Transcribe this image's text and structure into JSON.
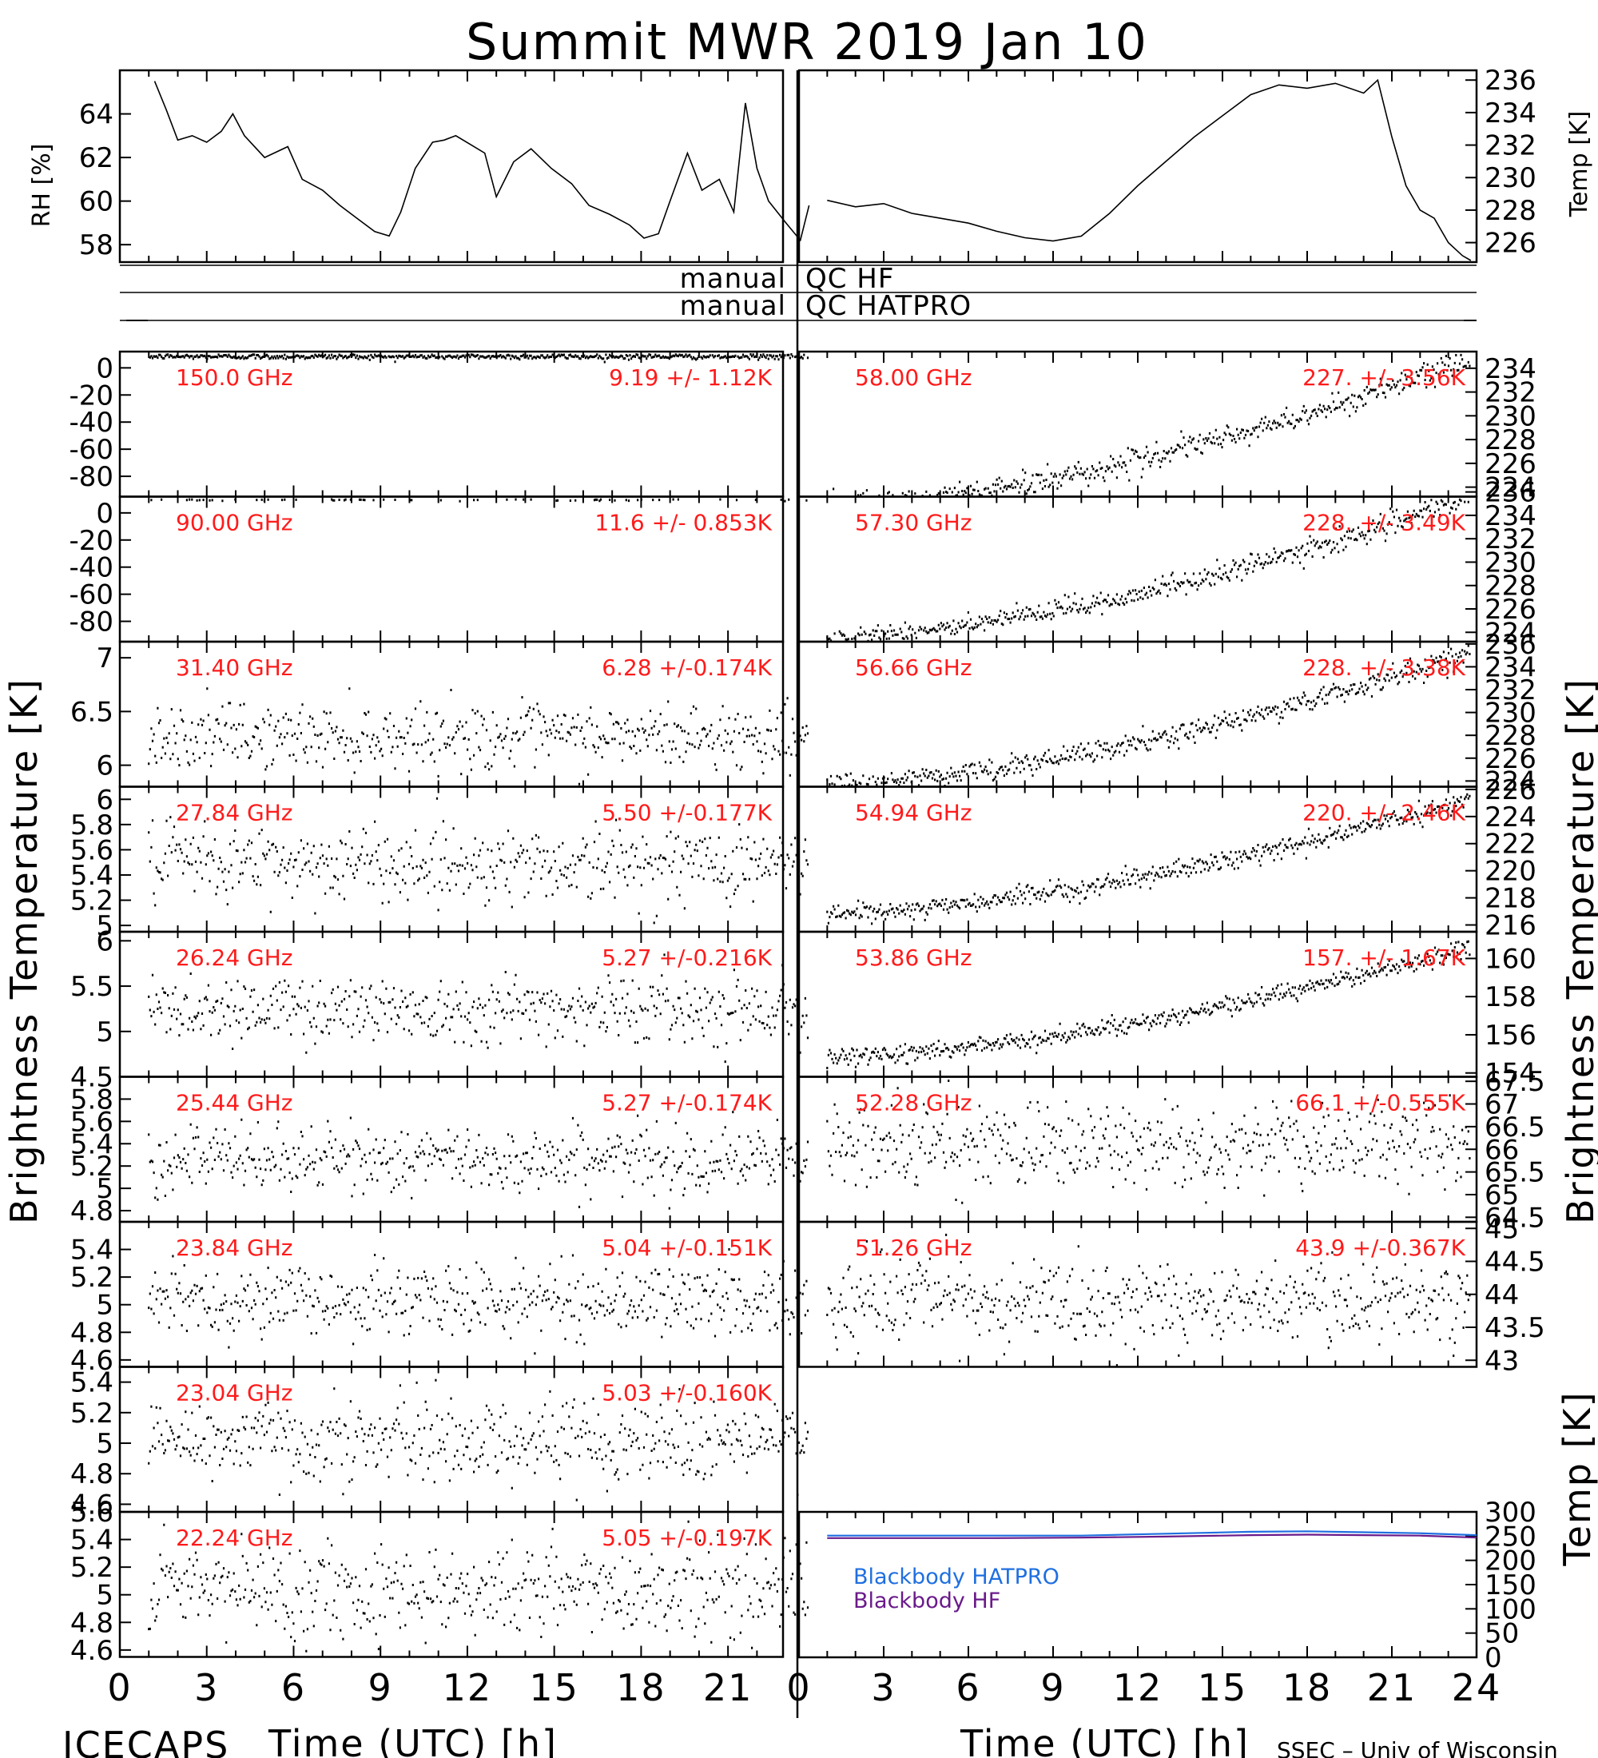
{
  "title": "Summit MWR 2019 Jan 10",
  "footer": {
    "left": "ICECAPS",
    "right": "SSEC – Univ of Wisconsin",
    "xlabel_left": "Time (UTC) [h]",
    "xlabel_right": "Time (UTC) [h]"
  },
  "y_labels": {
    "rh": "RH [%]",
    "temp_top": "Temp [K]",
    "bt_left": "Brightness Temperature [K]",
    "bt_right": "Brightness Temperature [K]",
    "bb_temp": "Temp [K]"
  },
  "qc": {
    "hf": "QC HF",
    "hatpro": "QC HATPRO",
    "manual_hf": "manual",
    "manual_hatpro": "manual"
  },
  "colors": {
    "channel_label": "#ff1a1a",
    "blackbody_hatpro": "#1f6fe0",
    "blackbody_hf": "#6a1a8a",
    "trace": "#000000"
  },
  "chart_data": [
    {
      "type": "line",
      "panel": "rh",
      "ylabel": "RH [%]",
      "ylim": [
        57.2,
        66
      ],
      "xlim": [
        0,
        24
      ],
      "yticks": [
        58,
        60,
        62,
        64
      ],
      "x": [
        1.2,
        1.6,
        2.0,
        2.5,
        3.0,
        3.5,
        3.9,
        4.3,
        5.0,
        5.8,
        6.3,
        7.0,
        7.6,
        8.2,
        8.8,
        9.3,
        9.7,
        10.2,
        10.8,
        11.2,
        11.6,
        12.1,
        12.6,
        13.0,
        13.6,
        14.2,
        14.9,
        15.6,
        16.2,
        16.9,
        17.6,
        18.1,
        18.6,
        19.0,
        19.6,
        20.1,
        20.7,
        21.2,
        21.6,
        22.0,
        22.4,
        23.0,
        23.5,
        23.8
      ],
      "y": [
        65.5,
        64.2,
        62.8,
        63.0,
        62.7,
        63.2,
        64.0,
        63.0,
        62.0,
        62.5,
        61.0,
        60.5,
        59.8,
        59.2,
        58.6,
        58.4,
        59.5,
        61.5,
        62.7,
        62.8,
        63.0,
        62.6,
        62.2,
        60.2,
        61.8,
        62.4,
        61.5,
        60.8,
        59.8,
        59.4,
        58.9,
        58.3,
        58.5,
        60.0,
        62.2,
        60.5,
        61.0,
        59.5,
        64.5,
        61.5,
        60.0,
        59.0,
        58.2,
        59.8
      ]
    },
    {
      "type": "line",
      "panel": "air_temp",
      "ylabel": "Temp [K]",
      "ylim": [
        224.8,
        236.6
      ],
      "xlim": [
        0,
        24
      ],
      "yticks": [
        226,
        228,
        230,
        232,
        234,
        236
      ],
      "x": [
        1.0,
        2.0,
        3.0,
        4.0,
        5.0,
        6.0,
        7.0,
        8.0,
        9.0,
        10.0,
        11.0,
        12.0,
        13.0,
        14.0,
        15.0,
        16.0,
        17.0,
        18.0,
        19.0,
        20.0,
        20.5,
        21.0,
        21.5,
        22.0,
        22.5,
        23.0,
        23.5,
        23.8
      ],
      "y": [
        228.6,
        228.2,
        228.4,
        227.8,
        227.5,
        227.2,
        226.7,
        226.3,
        226.1,
        226.4,
        227.8,
        229.5,
        231.0,
        232.5,
        233.8,
        235.1,
        235.7,
        235.5,
        235.8,
        235.2,
        236.0,
        232.5,
        229.5,
        228.0,
        227.5,
        226.0,
        225.2,
        224.9
      ]
    },
    {
      "type": "scatter",
      "panel": "hf",
      "freq": "150.0 GHz",
      "stats": "9.19 +/-  1.12K",
      "ylim": [
        -95,
        12
      ],
      "yticks": [
        0,
        -20,
        -40,
        -60,
        -80
      ],
      "mean": 9.19,
      "std": 1.12,
      "trend": 0
    },
    {
      "type": "scatter",
      "panel": "hf",
      "freq": "90.00 GHz",
      "stats": "11.6 +/- 0.853K",
      "ylim": [
        -95,
        12
      ],
      "yticks": [
        0,
        -20,
        -40,
        -60,
        -80
      ],
      "mean": 11.6,
      "std": 0.853,
      "trend": 0
    },
    {
      "type": "scatter",
      "panel": "hf",
      "freq": "31.40 GHz",
      "stats": "6.28 +/-0.174K",
      "ylim": [
        5.8,
        7.15
      ],
      "yticks": [
        6.0,
        6.5,
        7.0
      ],
      "mean": 6.28,
      "std": 0.174,
      "trend": 0
    },
    {
      "type": "scatter",
      "panel": "hf",
      "freq": "27.84 GHz",
      "stats": "5.50 +/-0.177K",
      "ylim": [
        4.95,
        6.1
      ],
      "yticks": [
        5.0,
        5.2,
        5.4,
        5.6,
        5.8,
        6.0
      ],
      "mean": 5.5,
      "std": 0.177,
      "trend": 0
    },
    {
      "type": "scatter",
      "panel": "hf",
      "freq": "26.24 GHz",
      "stats": "5.27 +/-0.216K",
      "ylim": [
        4.5,
        6.1
      ],
      "yticks": [
        4.5,
        5.0,
        5.5,
        6.0
      ],
      "mean": 5.27,
      "std": 0.216,
      "trend": 0
    },
    {
      "type": "scatter",
      "panel": "hf",
      "freq": "25.44 GHz",
      "stats": "5.27 +/-0.174K",
      "ylim": [
        4.7,
        6.0
      ],
      "yticks": [
        4.8,
        5.0,
        5.2,
        5.4,
        5.6,
        5.8
      ],
      "mean": 5.27,
      "std": 0.174,
      "trend": 0
    },
    {
      "type": "scatter",
      "panel": "hf",
      "freq": "23.84 GHz",
      "stats": "5.04 +/-0.151K",
      "ylim": [
        4.55,
        5.6
      ],
      "yticks": [
        4.6,
        4.8,
        5.0,
        5.2,
        5.4
      ],
      "mean": 5.04,
      "std": 0.151,
      "trend": 0
    },
    {
      "type": "scatter",
      "panel": "hf",
      "freq": "23.04 GHz",
      "stats": "5.03 +/-0.160K",
      "ylim": [
        4.55,
        5.5
      ],
      "yticks": [
        4.6,
        4.8,
        5.0,
        5.2,
        5.4
      ],
      "mean": 5.03,
      "std": 0.16,
      "trend": 0
    },
    {
      "type": "scatter",
      "panel": "hf",
      "freq": "22.24 GHz",
      "stats": "5.05 +/-0.197K",
      "ylim": [
        4.55,
        5.6
      ],
      "yticks": [
        4.6,
        4.8,
        5.0,
        5.2,
        5.4,
        5.6
      ],
      "mean": 5.05,
      "std": 0.197,
      "trend": 0
    },
    {
      "type": "scatter",
      "panel": "hatpro",
      "freq": "58.00 GHz",
      "stats": "227. +/- 3.56K",
      "ylim": [
        223.2,
        235.4
      ],
      "yticks": [
        224,
        226,
        228,
        230,
        232,
        234
      ],
      "mean": 227.0,
      "std": 3.56,
      "trend": 1
    },
    {
      "type": "scatter",
      "panel": "hatpro",
      "freq": "57.30 GHz",
      "stats": "228. +/- 3.49K",
      "ylim": [
        223.2,
        235.6
      ],
      "yticks": [
        224,
        226,
        228,
        230,
        232,
        234,
        236
      ],
      "mean": 228.0,
      "std": 3.49,
      "trend": 1
    },
    {
      "type": "scatter",
      "panel": "hatpro",
      "freq": "56.66 GHz",
      "stats": "228. +/- 3.38K",
      "ylim": [
        223.5,
        236.2
      ],
      "yticks": [
        224,
        226,
        228,
        230,
        232,
        234,
        236
      ],
      "mean": 228.0,
      "std": 3.38,
      "trend": 1
    },
    {
      "type": "scatter",
      "panel": "hatpro",
      "freq": "54.94 GHz",
      "stats": "220. +/- 2.46K",
      "ylim": [
        215.5,
        226.2
      ],
      "yticks": [
        216,
        218,
        220,
        222,
        224,
        226
      ],
      "mean": 220.0,
      "std": 2.46,
      "trend": 1
    },
    {
      "type": "scatter",
      "panel": "hatpro",
      "freq": "53.86 GHz",
      "stats": "157. +/- 1.67K",
      "ylim": [
        153.8,
        161.4
      ],
      "yticks": [
        154,
        156,
        158,
        160
      ],
      "mean": 157.0,
      "std": 1.67,
      "trend": 1
    },
    {
      "type": "scatter",
      "panel": "hatpro",
      "freq": "52.28 GHz",
      "stats": "66.1 +/-0.555K",
      "ylim": [
        64.4,
        67.6
      ],
      "yticks": [
        64.5,
        65.0,
        65.5,
        66.0,
        66.5,
        67.0,
        67.5
      ],
      "mean": 66.1,
      "std": 0.555,
      "trend": 0
    },
    {
      "type": "scatter",
      "panel": "hatpro",
      "freq": "51.26 GHz",
      "stats": "43.9 +/-0.367K",
      "ylim": [
        42.9,
        45.1
      ],
      "yticks": [
        43.0,
        43.5,
        44.0,
        44.5,
        45.0
      ],
      "mean": 43.9,
      "std": 0.367,
      "trend": 0
    },
    {
      "type": "line",
      "panel": "blackbody",
      "ylabel": "Temp [K]",
      "ylim": [
        0,
        300
      ],
      "xlim": [
        0,
        24
      ],
      "yticks": [
        0,
        50,
        100,
        150,
        200,
        250,
        300
      ],
      "series": [
        {
          "name": "Blackbody HATPRO",
          "x": [
            1,
            4,
            7,
            10,
            13,
            16,
            18,
            20,
            22,
            24
          ],
          "y": [
            251,
            251,
            251,
            251,
            255,
            259,
            260,
            258,
            256,
            252
          ]
        },
        {
          "name": "Blackbody HF",
          "x": [
            1,
            4,
            7,
            10,
            13,
            16,
            18,
            20,
            22,
            24
          ],
          "y": [
            246,
            246,
            246,
            247,
            249,
            252,
            253,
            252,
            251,
            247
          ]
        }
      ]
    }
  ],
  "x_axis": {
    "ticks_left": [
      "0",
      "3",
      "6",
      "9",
      "12",
      "15",
      "18",
      "21"
    ],
    "ticks_right": [
      "0",
      "3",
      "6",
      "9",
      "12",
      "15",
      "18",
      "21",
      "24"
    ]
  }
}
